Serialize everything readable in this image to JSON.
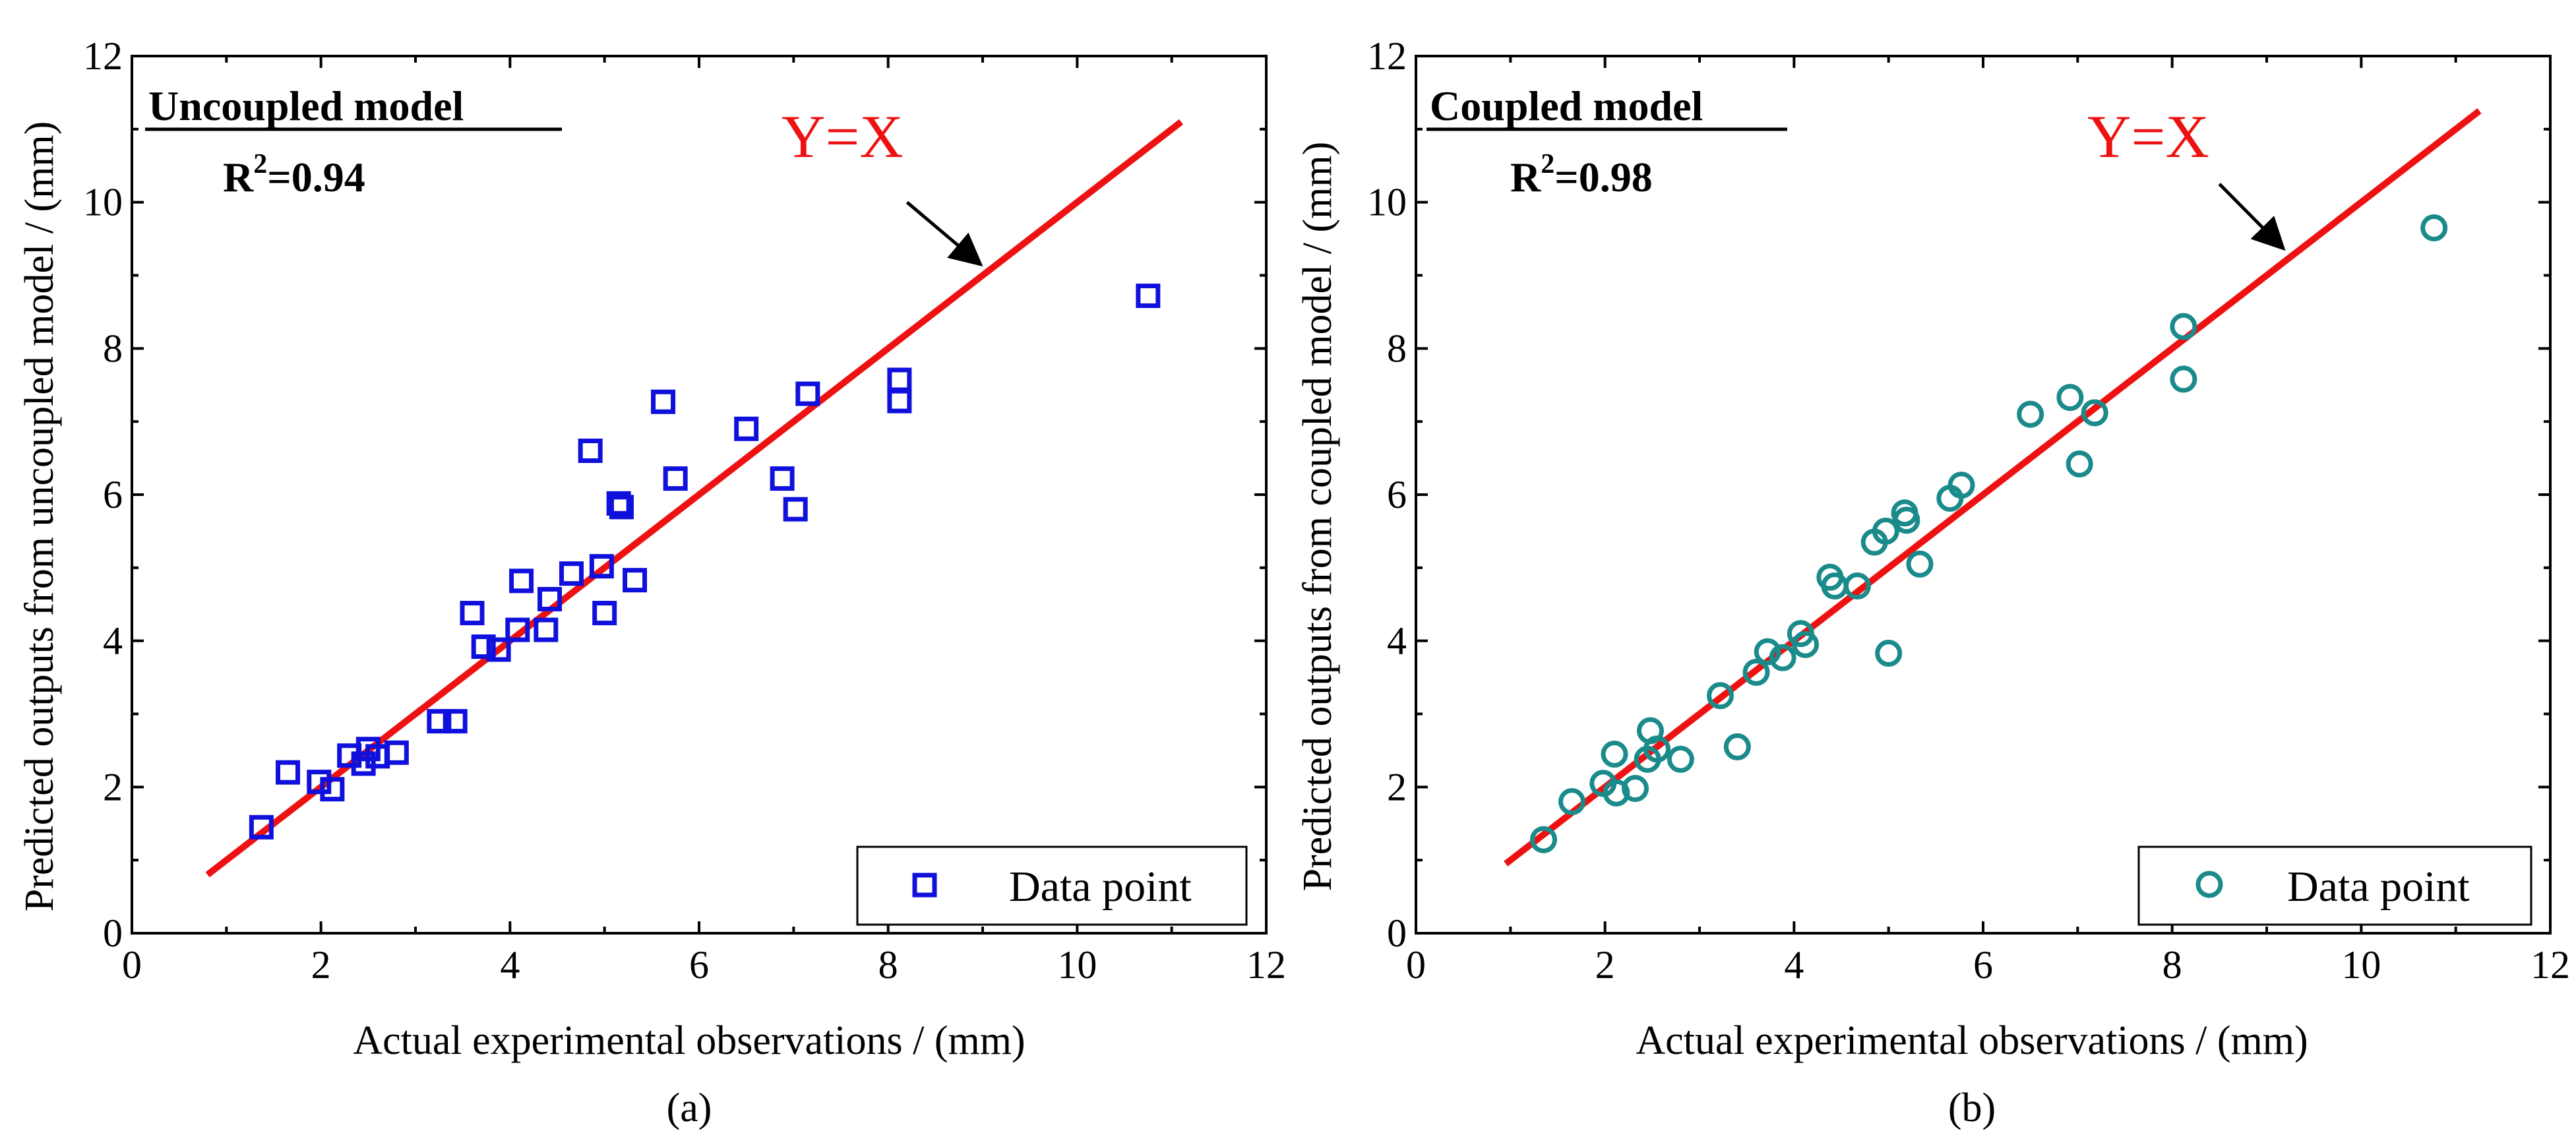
{
  "chart_data": [
    {
      "type": "scatter",
      "panel_label": "(a)",
      "model_title": "Uncoupled model",
      "r2_prefix": "R",
      "r2_sup": "2",
      "r2_value": "=0.94",
      "line_label": "Y=X",
      "line_color": "#ee1111",
      "marker": "square",
      "marker_color": "#1010dd",
      "legend": "Data point",
      "legend_position": "bottom-right",
      "xlabel": "Actual experimental observations / (mm)",
      "ylabel": "Predicted outputs from uncoupled model / (mm)",
      "xlim": [
        0,
        12
      ],
      "ylim": [
        0,
        12
      ],
      "x_ticks": [
        "0",
        "2",
        "4",
        "6",
        "8",
        "10",
        "12"
      ],
      "y_ticks": [
        "0",
        "2",
        "4",
        "6",
        "8",
        "10",
        "12"
      ],
      "line": {
        "x": [
          0.8,
          11.1
        ],
        "y": [
          0.8,
          11.1
        ]
      },
      "arrow": {
        "from": [
          8.2,
          10.0
        ],
        "to": [
          8.95,
          9.18
        ]
      },
      "points": [
        [
          1.37,
          1.45
        ],
        [
          1.65,
          2.2
        ],
        [
          1.98,
          2.07
        ],
        [
          2.12,
          1.97
        ],
        [
          2.3,
          2.43
        ],
        [
          2.45,
          2.32
        ],
        [
          2.5,
          2.52
        ],
        [
          2.6,
          2.42
        ],
        [
          2.8,
          2.47
        ],
        [
          3.25,
          2.9
        ],
        [
          3.42,
          2.9
        ],
        [
          3.6,
          4.38
        ],
        [
          3.72,
          3.92
        ],
        [
          3.88,
          3.88
        ],
        [
          4.08,
          4.15
        ],
        [
          4.12,
          4.82
        ],
        [
          4.38,
          4.15
        ],
        [
          4.42,
          4.57
        ],
        [
          4.65,
          4.92
        ],
        [
          4.85,
          6.6
        ],
        [
          4.97,
          5.02
        ],
        [
          5.0,
          4.38
        ],
        [
          5.15,
          5.88
        ],
        [
          5.18,
          5.83
        ],
        [
          5.32,
          4.83
        ],
        [
          5.62,
          7.27
        ],
        [
          5.75,
          6.22
        ],
        [
          6.5,
          6.9
        ],
        [
          6.88,
          6.22
        ],
        [
          7.02,
          5.8
        ],
        [
          7.15,
          7.38
        ],
        [
          8.12,
          7.57
        ],
        [
          8.12,
          7.28
        ],
        [
          10.75,
          8.72
        ]
      ]
    },
    {
      "type": "scatter",
      "panel_label": "(b)",
      "model_title": "Coupled model",
      "r2_prefix": "R",
      "r2_sup": "2",
      "r2_value": "=0.98",
      "line_label": "Y=X",
      "line_color": "#ee1111",
      "marker": "circle",
      "marker_color": "#1a8a8a",
      "legend": "Data point",
      "legend_position": "bottom-right",
      "xlabel": "Actual experimental observations / (mm)",
      "ylabel": "Predicted outputs from coupled model / (mm)",
      "xlim": [
        0,
        12
      ],
      "ylim": [
        0,
        12
      ],
      "x_ticks": [
        "0",
        "2",
        "4",
        "6",
        "8",
        "10",
        "12"
      ],
      "y_ticks": [
        "0",
        "2",
        "4",
        "6",
        "8",
        "10",
        "12"
      ],
      "line": {
        "x": [
          0.95,
          11.25
        ],
        "y": [
          0.95,
          11.25
        ]
      },
      "arrow": {
        "from": [
          8.5,
          10.25
        ],
        "to": [
          9.15,
          9.4
        ]
      },
      "points": [
        [
          1.35,
          1.28
        ],
        [
          1.65,
          1.8
        ],
        [
          1.98,
          2.05
        ],
        [
          2.1,
          2.45
        ],
        [
          2.12,
          1.92
        ],
        [
          2.32,
          1.98
        ],
        [
          2.45,
          2.38
        ],
        [
          2.48,
          2.77
        ],
        [
          2.55,
          2.52
        ],
        [
          2.8,
          2.38
        ],
        [
          3.22,
          3.25
        ],
        [
          3.4,
          2.55
        ],
        [
          3.6,
          3.57
        ],
        [
          3.72,
          3.85
        ],
        [
          3.88,
          3.77
        ],
        [
          4.07,
          4.1
        ],
        [
          4.12,
          3.95
        ],
        [
          4.38,
          4.87
        ],
        [
          4.43,
          4.75
        ],
        [
          4.67,
          4.75
        ],
        [
          4.85,
          5.35
        ],
        [
          4.97,
          5.5
        ],
        [
          5.0,
          3.83
        ],
        [
          5.17,
          5.75
        ],
        [
          5.19,
          5.65
        ],
        [
          5.33,
          5.05
        ],
        [
          5.65,
          5.95
        ],
        [
          5.77,
          6.13
        ],
        [
          6.5,
          7.1
        ],
        [
          6.92,
          7.33
        ],
        [
          7.02,
          6.42
        ],
        [
          7.18,
          7.12
        ],
        [
          8.12,
          8.3
        ],
        [
          8.12,
          7.58
        ],
        [
          10.77,
          9.65
        ]
      ]
    }
  ]
}
